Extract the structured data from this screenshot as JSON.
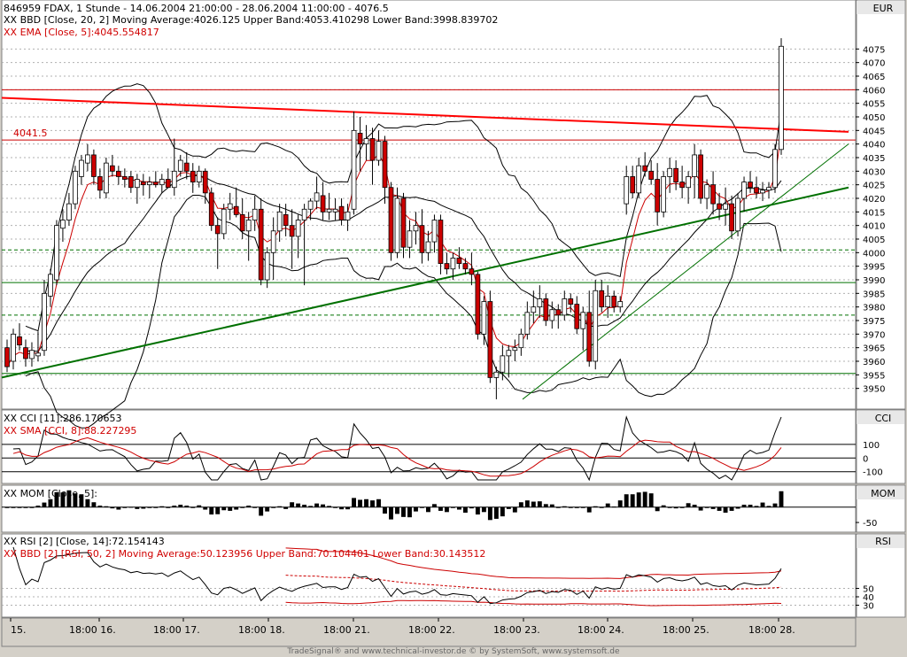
{
  "header": {
    "main_line1": "846959  FDAX, 1 Stunde - 14.06.2004 21:00:00 - 28.06.2004 11:00:00 - 4076.5",
    "main_line2": "XX BBD [Close, 20, 2] Moving Average:4026.125 Upper Band:4053.410298 Lower Band:3998.839702",
    "main_line3": "XX EMA [Close, 5]:4045.554817",
    "cci_line1": "XX CCI [11]:286.170653",
    "cci_line2": "XX SMA [CCI, 8]:88.227295",
    "mom_line1": "XX MOM [Close, 5]:",
    "rsi_line1": "XX RSI [2] [Close, 14]:72.154143",
    "rsi_line2": "XX BBD [2] [RSI, 50, 2] Moving Average:50.123956 Upper Band:70.104401 Lower Band:30.143512"
  },
  "panels": {
    "main_title": "EUR",
    "cci_title": "CCI",
    "mom_title": "MOM",
    "rsi_title": "RSI"
  },
  "annotations": {
    "level_label": "4041.5"
  },
  "footer": "TradeSignal® and www.technical-investor.de © by SystemSoft, www.systemsoft.de",
  "colors": {
    "up_candle": "#ffffff",
    "down_candle": "#cc0000",
    "ema": "#cc0000",
    "trend_red": "#ff0000",
    "trend_green": "#007000",
    "plot_bg": "#ffffff",
    "grid": "#b0b0b0"
  },
  "chart_data": [
    {
      "type": "candlestick",
      "title": "846959  FDAX, 1 Stunde",
      "ylabel": "EUR",
      "ylim": [
        3945,
        4080
      ],
      "y_ticks": [
        3950,
        3955,
        3960,
        3965,
        3970,
        3975,
        3980,
        3985,
        3990,
        3995,
        4000,
        4005,
        4010,
        4015,
        4020,
        4025,
        4030,
        4035,
        4040,
        4045,
        4050,
        4055,
        4060,
        4065,
        4070,
        4075
      ],
      "x_tick_labels": [
        "15.",
        "18:00 16.",
        "18:00 17.",
        "18:00 18.",
        "18:00 21.",
        "18:00 22.",
        "18:00 23.",
        "18:00 24.",
        "18:00 25.",
        "18:00 28."
      ],
      "ohlc": [
        [
          3965,
          3968,
          3956,
          3958
        ],
        [
          3960,
          3972,
          3957,
          3970
        ],
        [
          3969,
          3974,
          3964,
          3966
        ],
        [
          3965,
          3968,
          3958,
          3961
        ],
        [
          3961,
          3967,
          3958,
          3964
        ],
        [
          3962,
          3971,
          3960,
          3963
        ],
        [
          3964,
          3990,
          3962,
          3985
        ],
        [
          3984,
          3994,
          3980,
          3992
        ],
        [
          3990,
          4012,
          3988,
          4010
        ],
        [
          4009,
          4016,
          4004,
          4012
        ],
        [
          4012,
          4022,
          4010,
          4018
        ],
        [
          4018,
          4032,
          4016,
          4030
        ],
        [
          4028,
          4036,
          4025,
          4034
        ],
        [
          4033,
          4040,
          4030,
          4036
        ],
        [
          4036,
          4038,
          4025,
          4028
        ],
        [
          4028,
          4031,
          4020,
          4023
        ],
        [
          4022,
          4035,
          4020,
          4033
        ],
        [
          4032,
          4036,
          4028,
          4030
        ],
        [
          4030,
          4032,
          4025,
          4028
        ],
        [
          4028,
          4031,
          4024,
          4027
        ],
        [
          4028,
          4030,
          4022,
          4024
        ],
        [
          4024,
          4029,
          4018,
          4027
        ],
        [
          4026,
          4029,
          4021,
          4025
        ],
        [
          4025,
          4028,
          4020,
          4026
        ],
        [
          4026,
          4030,
          4024,
          4025
        ],
        [
          4025,
          4029,
          4022,
          4027
        ],
        [
          4027,
          4031,
          4024,
          4024
        ],
        [
          4024,
          4042,
          4021,
          4030
        ],
        [
          4030,
          4036,
          4028,
          4034
        ],
        [
          4033,
          4037,
          4027,
          4030
        ],
        [
          4030,
          4033,
          4022,
          4026
        ],
        [
          4026,
          4032,
          4024,
          4030
        ],
        [
          4030,
          4031,
          4018,
          4022
        ],
        [
          4022,
          4024,
          4008,
          4010
        ],
        [
          4010,
          4013,
          3994,
          4007
        ],
        [
          4007,
          4018,
          4005,
          4016
        ],
        [
          4016,
          4022,
          4012,
          4018
        ],
        [
          4017,
          4024,
          4013,
          4014
        ],
        [
          4014,
          4020,
          4005,
          4008
        ],
        [
          4008,
          4015,
          3997,
          4012
        ],
        [
          4012,
          4021,
          4008,
          4016
        ],
        [
          4016,
          4020,
          3988,
          3990
        ],
        [
          3990,
          4002,
          3987,
          4000
        ],
        [
          4000,
          4013,
          3990,
          4008
        ],
        [
          4008,
          4018,
          4004,
          4015
        ],
        [
          4014,
          4018,
          4006,
          4010
        ],
        [
          4010,
          4016,
          3994,
          4006
        ],
        [
          4006,
          4014,
          3998,
          4012
        ],
        [
          4012,
          4018,
          3988,
          4016
        ],
        [
          4016,
          4020,
          4012,
          4019
        ],
        [
          4019,
          4028,
          4016,
          4022
        ],
        [
          4021,
          4026,
          4012,
          4015
        ],
        [
          4015,
          4022,
          4012,
          4016
        ],
        [
          4015,
          4020,
          4012,
          4016
        ],
        [
          4017,
          4020,
          4010,
          4012
        ],
        [
          4012,
          4018,
          4008,
          4015
        ],
        [
          4016,
          4052,
          4014,
          4045
        ],
        [
          4044,
          4050,
          4030,
          4040
        ],
        [
          4040,
          4047,
          4034,
          4042
        ],
        [
          4042,
          4046,
          4025,
          4034
        ],
        [
          4034,
          4045,
          4032,
          4041
        ],
        [
          4041,
          4043,
          4018,
          4024
        ],
        [
          4024,
          4026,
          3997,
          4000
        ],
        [
          4000,
          4024,
          3998,
          4020
        ],
        [
          4020,
          4022,
          3998,
          4002
        ],
        [
          4002,
          4012,
          3998,
          4008
        ],
        [
          4008,
          4015,
          4003,
          4010
        ],
        [
          4010,
          4016,
          3996,
          4000
        ],
        [
          4000,
          4008,
          3997,
          4004
        ],
        [
          4004,
          4014,
          4000,
          4012
        ],
        [
          4012,
          4014,
          3992,
          3996
        ],
        [
          3996,
          4000,
          3992,
          3994
        ],
        [
          3994,
          4000,
          3990,
          3998
        ],
        [
          3998,
          4002,
          3994,
          3996
        ],
        [
          3996,
          3998,
          3992,
          3994
        ],
        [
          3994,
          4000,
          3988,
          3992
        ],
        [
          3992,
          3993,
          3968,
          3970
        ],
        [
          3970,
          3984,
          3966,
          3982
        ],
        [
          3982,
          3986,
          3952,
          3954
        ],
        [
          3954,
          3958,
          3946,
          3956
        ],
        [
          3956,
          3966,
          3953,
          3962
        ],
        [
          3962,
          3966,
          3954,
          3964
        ],
        [
          3964,
          3968,
          3960,
          3965
        ],
        [
          3965,
          3972,
          3962,
          3970
        ],
        [
          3970,
          3982,
          3968,
          3978
        ],
        [
          3978,
          3986,
          3974,
          3980
        ],
        [
          3980,
          3988,
          3976,
          3983
        ],
        [
          3983,
          3985,
          3973,
          3975
        ],
        [
          3975,
          3982,
          3972,
          3979
        ],
        [
          3979,
          3981,
          3972,
          3977
        ],
        [
          3977,
          3986,
          3975,
          3983
        ],
        [
          3983,
          3985,
          3978,
          3981
        ],
        [
          3981,
          3984,
          3970,
          3972
        ],
        [
          3972,
          3980,
          3964,
          3978
        ],
        [
          3978,
          3986,
          3958,
          3960
        ],
        [
          3960,
          3990,
          3957,
          3986
        ],
        [
          3986,
          3990,
          3978,
          3980
        ],
        [
          3980,
          3988,
          3976,
          3984
        ],
        [
          3984,
          3986,
          3978,
          3980
        ],
        [
          3980,
          3984,
          3978,
          3982
        ],
        [
          4018,
          4032,
          4014,
          4028
        ],
        [
          4028,
          4032,
          4020,
          4022
        ],
        [
          4022,
          4035,
          4020,
          4032
        ],
        [
          4032,
          4037,
          4028,
          4030
        ],
        [
          4030,
          4034,
          4025,
          4027
        ],
        [
          4027,
          4033,
          4010,
          4015
        ],
        [
          4015,
          4030,
          4013,
          4028
        ],
        [
          4028,
          4035,
          4022,
          4031
        ],
        [
          4031,
          4034,
          4023,
          4026
        ],
        [
          4026,
          4032,
          4020,
          4024
        ],
        [
          4024,
          4030,
          4018,
          4028
        ],
        [
          4028,
          4040,
          4020,
          4036
        ],
        [
          4036,
          4038,
          4018,
          4020
        ],
        [
          4020,
          4027,
          4016,
          4025
        ],
        [
          4025,
          4030,
          4014,
          4018
        ],
        [
          4018,
          4022,
          4012,
          4016
        ],
        [
          4016,
          4024,
          4010,
          4018
        ],
        [
          4018,
          4021,
          4005,
          4008
        ],
        [
          4008,
          4022,
          4006,
          4020
        ],
        [
          4020,
          4028,
          4015,
          4026
        ],
        [
          4026,
          4030,
          4022,
          4024
        ],
        [
          4024,
          4028,
          4020,
          4022
        ],
        [
          4022,
          4026,
          4019,
          4023
        ],
        [
          4023,
          4026,
          4020,
          4024
        ],
        [
          4024,
          4040,
          4022,
          4038
        ],
        [
          4038,
          4079,
          4036,
          4076
        ]
      ],
      "bollinger": {
        "period": 20,
        "stddev": 2
      },
      "ema": {
        "period": 5
      },
      "horizontal_lines": [
        {
          "value": 4060,
          "color": "#cc0000",
          "style": "solid"
        },
        {
          "value": 4041.5,
          "color": "#cc0000",
          "style": "solid"
        },
        {
          "value": 4001,
          "color": "#007000",
          "style": "dashed"
        },
        {
          "value": 3989,
          "color": "#007000",
          "style": "solid"
        },
        {
          "value": 3977,
          "color": "#007000",
          "style": "dashed"
        },
        {
          "value": 3955.5,
          "color": "#007000",
          "style": "solid"
        }
      ]
    },
    {
      "type": "line",
      "title": "CCI",
      "ylim": [
        -160,
        300
      ],
      "y_ticks": [
        100,
        0,
        -100
      ],
      "y_tick_labels": [
        "100",
        "0",
        "-100"
      ]
    },
    {
      "type": "bar",
      "title": "MOM",
      "ylim": [
        -70,
        60
      ],
      "y_ticks": [
        -50
      ],
      "y_tick_labels": [
        "-50"
      ]
    },
    {
      "type": "line",
      "title": "RSI",
      "ylim": [
        20,
        100
      ],
      "y_ticks": [
        30,
        40,
        50
      ],
      "y_tick_labels": [
        "30",
        "40",
        "50"
      ]
    }
  ]
}
